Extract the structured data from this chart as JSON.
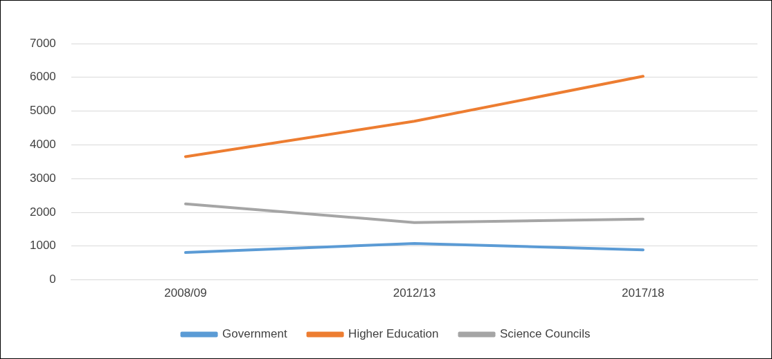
{
  "chart_data": {
    "type": "line",
    "categories": [
      "2008/09",
      "2012/13",
      "2017/18"
    ],
    "series": [
      {
        "name": "Government",
        "color": "#5b9bd5",
        "values": [
          810,
          1080,
          890
        ]
      },
      {
        "name": "Higher Education",
        "color": "#ed7d31",
        "values": [
          3650,
          4700,
          6030
        ]
      },
      {
        "name": "Science Councils",
        "color": "#a5a5a5",
        "values": [
          2250,
          1700,
          1800
        ]
      }
    ],
    "ylim": [
      0,
      7000
    ],
    "yticks": [
      0,
      1000,
      2000,
      3000,
      4000,
      5000,
      6000,
      7000
    ],
    "grid": "y",
    "legend": "bottom",
    "marker": "none",
    "line_style": "solid"
  }
}
